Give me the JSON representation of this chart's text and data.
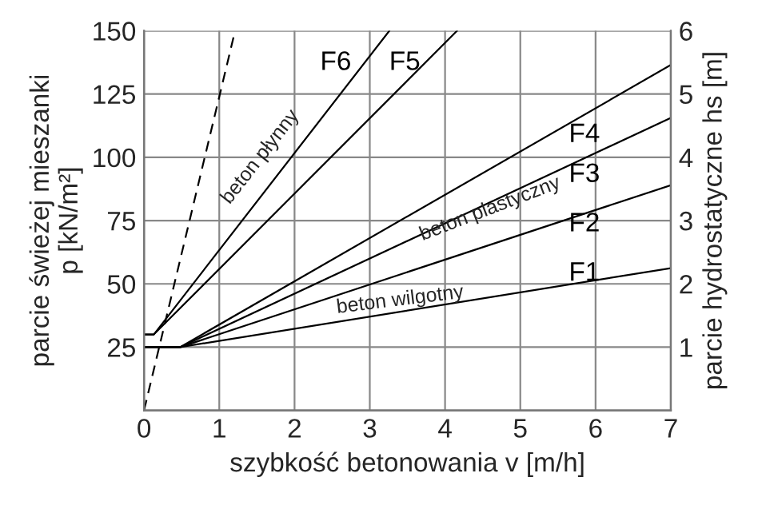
{
  "chart_data": {
    "type": "line",
    "xlabel": "szybkość betonowania v [m/h]",
    "ylabel": "parcie świeżej mieszanki\np [kN/m²]",
    "y2label": "parcie hydrostatyczne hs [m]",
    "series": [
      {
        "name": "F1",
        "color": "#000000",
        "x": [
          0,
          0.48,
          7
        ],
        "values": [
          25,
          25,
          56.2
        ]
      },
      {
        "name": "F2",
        "color": "#000000",
        "x": [
          0,
          0.48,
          7
        ],
        "values": [
          25,
          25,
          89
        ]
      },
      {
        "name": "F3",
        "color": "#000000",
        "x": [
          0,
          0.48,
          7
        ],
        "values": [
          25,
          25,
          115.6
        ]
      },
      {
        "name": "F4",
        "color": "#000000",
        "x": [
          0,
          0.48,
          7
        ],
        "values": [
          25,
          25,
          136.5
        ]
      },
      {
        "name": "F5",
        "color": "#000000",
        "x": [
          0,
          0.13,
          4.16
        ],
        "values": [
          30,
          30,
          150
        ]
      },
      {
        "name": "F6",
        "color": "#000000",
        "x": [
          0,
          0.13,
          3.26
        ],
        "values": [
          30,
          30,
          150
        ]
      },
      {
        "color": "#000000",
        "x": [
          0,
          1.21
        ],
        "values": [
          0,
          150
        ],
        "line_style": "dashed"
      }
    ],
    "annotations": [
      "beton wilgotny",
      "beton plastyczny",
      "beton płynny"
    ],
    "xlim": [
      0,
      7
    ],
    "ylim": [
      0,
      150
    ],
    "xticks": [
      0,
      1,
      2,
      3,
      4,
      5,
      6,
      7
    ],
    "yticks": [
      25,
      50,
      75,
      100,
      125,
      150
    ],
    "y2lim": [
      0,
      6
    ],
    "y2ticks": [
      1,
      2,
      3,
      4,
      5,
      6
    ],
    "grid": true,
    "legend": false,
    "line_style": "solid",
    "marker": "none"
  }
}
